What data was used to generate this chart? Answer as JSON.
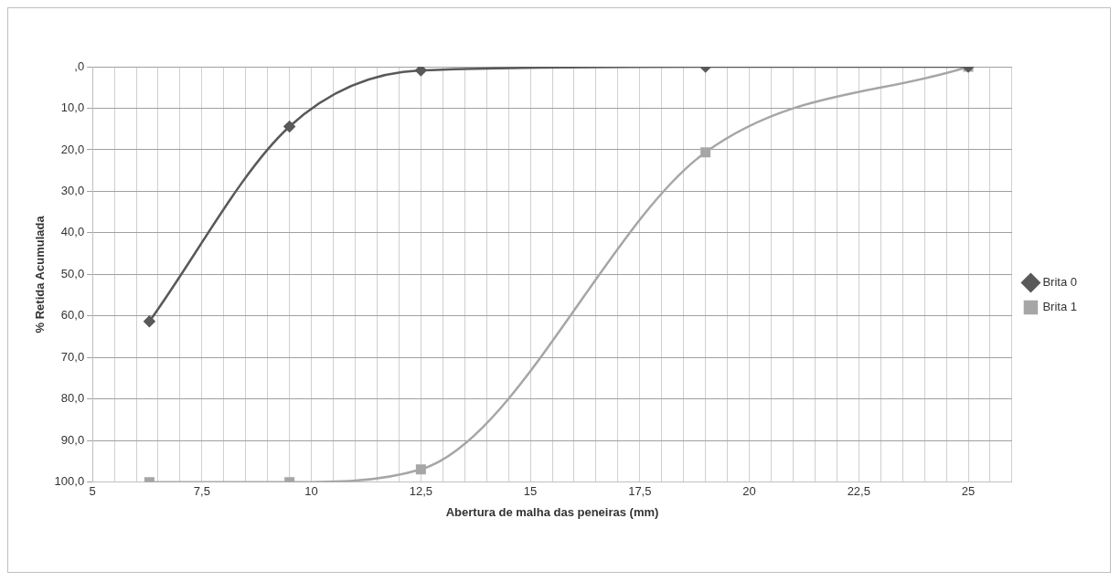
{
  "chart_data": {
    "type": "line",
    "xlabel": "Abertura de malha das peneiras (mm)",
    "ylabel": "% Retida Acumulada",
    "xlim": [
      5,
      26
    ],
    "xticks": [
      5,
      {
        "value": 5.5,
        "label": null
      },
      {
        "value": 6,
        "label": null
      },
      {
        "value": 6.5,
        "label": null
      },
      {
        "value": 7,
        "label": null
      },
      {
        "value": 7.5,
        "label": "7,5"
      },
      {
        "value": 8,
        "label": null
      },
      {
        "value": 8.5,
        "label": null
      },
      {
        "value": 9,
        "label": null
      },
      {
        "value": 9.5,
        "label": null
      },
      10,
      {
        "value": 10.5,
        "label": null
      },
      {
        "value": 11,
        "label": null
      },
      {
        "value": 11.5,
        "label": null
      },
      {
        "value": 12,
        "label": null
      },
      {
        "value": 12.5,
        "label": "12,5"
      },
      {
        "value": 13,
        "label": null
      },
      {
        "value": 13.5,
        "label": null
      },
      {
        "value": 14,
        "label": null
      },
      {
        "value": 14.5,
        "label": null
      },
      15,
      {
        "value": 15.5,
        "label": null
      },
      {
        "value": 16,
        "label": null
      },
      {
        "value": 16.5,
        "label": null
      },
      {
        "value": 17,
        "label": null
      },
      {
        "value": 17.5,
        "label": "17,5"
      },
      {
        "value": 18,
        "label": null
      },
      {
        "value": 18.5,
        "label": null
      },
      {
        "value": 19,
        "label": null
      },
      {
        "value": 19.5,
        "label": null
      },
      20,
      {
        "value": 20.5,
        "label": null
      },
      {
        "value": 21,
        "label": null
      },
      {
        "value": 21.5,
        "label": null
      },
      {
        "value": 22,
        "label": null
      },
      {
        "value": 22.5,
        "label": "22,5"
      },
      {
        "value": 23,
        "label": null
      },
      {
        "value": 23.5,
        "label": null
      },
      {
        "value": 24,
        "label": null
      },
      {
        "value": 24.5,
        "label": null
      },
      25,
      {
        "value": 25.5,
        "label": null
      },
      {
        "value": 26,
        "label": null
      }
    ],
    "ylim": [
      100,
      0
    ],
    "yticks": [
      {
        "value": 0,
        "label": ",0"
      },
      {
        "value": 10,
        "label": "10,0"
      },
      {
        "value": 20,
        "label": "20,0"
      },
      {
        "value": 30,
        "label": "30,0"
      },
      {
        "value": 40,
        "label": "40,0"
      },
      {
        "value": 50,
        "label": "50,0"
      },
      {
        "value": 60,
        "label": "60,0"
      },
      {
        "value": 70,
        "label": "70,0"
      },
      {
        "value": 80,
        "label": "80,0"
      },
      {
        "value": 90,
        "label": "90,0"
      },
      {
        "value": 100,
        "label": "100,0"
      }
    ],
    "grid": true,
    "legend": "right",
    "series": [
      {
        "name": "Brita 0",
        "color": "#595959",
        "marker": "diamond",
        "x": [
          6.3,
          9.5,
          12.5,
          19,
          25
        ],
        "values": [
          61.3,
          14.4,
          0.9,
          0,
          0
        ]
      },
      {
        "name": "Brita 1",
        "color": "#a6a6a6",
        "marker": "square",
        "x": [
          6.3,
          9.5,
          12.5,
          19,
          25
        ],
        "values": [
          100,
          100,
          96.9,
          20.6,
          0
        ]
      }
    ]
  }
}
